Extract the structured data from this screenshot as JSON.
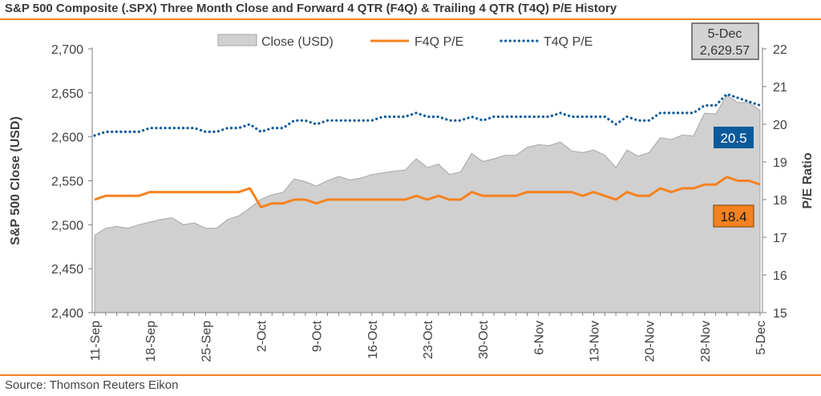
{
  "title": "S&P 500 Composite (.SPX) Three Month Close and Forward 4 QTR (F4Q) & Trailing 4 QTR (T4Q) P/E History",
  "source": "Source: Thomson Reuters Eikon",
  "colors": {
    "accent_rule": "#f57f1f",
    "close_fill": "#d0d0d0",
    "close_stroke": "#a6a6a6",
    "f4q": "#f58220",
    "t4q": "#0a5a9c",
    "axis": "#7f7f7f",
    "text": "#404040"
  },
  "chart_data": {
    "type": "area",
    "title": "S&P 500 Composite (.SPX) Three Month Close and Forward 4 QTR (F4Q) & Trailing 4 QTR (T4Q) P/E History",
    "ylabel": "S&P 500 Close (USD)",
    "y2label": "P/E Ratio",
    "ylim": [
      2400,
      2700
    ],
    "y2lim": [
      15,
      22
    ],
    "yticks": [
      "2,400",
      "2,450",
      "2,500",
      "2,550",
      "2,600",
      "2,650",
      "2,700"
    ],
    "y2ticks": [
      "15",
      "16",
      "17",
      "18",
      "19",
      "20",
      "21",
      "22"
    ],
    "xticks": [
      {
        "label": "11-Sep",
        "index": 0
      },
      {
        "label": "18-Sep",
        "index": 5
      },
      {
        "label": "25-Sep",
        "index": 10
      },
      {
        "label": "2-Oct",
        "index": 15
      },
      {
        "label": "9-Oct",
        "index": 20
      },
      {
        "label": "16-Oct",
        "index": 25
      },
      {
        "label": "23-Oct",
        "index": 30
      },
      {
        "label": "30-Oct",
        "index": 35
      },
      {
        "label": "6-Nov",
        "index": 40
      },
      {
        "label": "13-Nov",
        "index": 45
      },
      {
        "label": "20-Nov",
        "index": 50
      },
      {
        "label": "28-Nov",
        "index": 55
      },
      {
        "label": "5-Dec",
        "index": 60
      }
    ],
    "legend_position": "top",
    "grid": false,
    "series": [
      {
        "name": "Close (USD)",
        "axis": "left",
        "style": "area",
        "values": [
          2488,
          2496,
          2498,
          2496,
          2500,
          2503,
          2506,
          2508,
          2500,
          2502,
          2496,
          2496,
          2506,
          2510,
          2519,
          2529,
          2534,
          2537,
          2552,
          2549,
          2544,
          2550,
          2555,
          2551,
          2553,
          2557,
          2559,
          2561,
          2562,
          2575,
          2565,
          2569,
          2557,
          2560,
          2581,
          2572,
          2575,
          2579,
          2579,
          2588,
          2591,
          2590,
          2594,
          2584,
          2582,
          2585,
          2579,
          2565,
          2585,
          2578,
          2582,
          2599,
          2597,
          2602,
          2601,
          2627,
          2626,
          2647,
          2639,
          2639,
          2630
        ]
      },
      {
        "name": "F4Q P/E",
        "axis": "right",
        "style": "line",
        "values": [
          18.0,
          18.1,
          18.1,
          18.1,
          18.1,
          18.2,
          18.2,
          18.2,
          18.2,
          18.2,
          18.2,
          18.2,
          18.2,
          18.2,
          18.3,
          17.8,
          17.9,
          17.9,
          18.0,
          18.0,
          17.9,
          18.0,
          18.0,
          18.0,
          18.0,
          18.0,
          18.0,
          18.0,
          18.0,
          18.1,
          18.0,
          18.1,
          18.0,
          18.0,
          18.2,
          18.1,
          18.1,
          18.1,
          18.1,
          18.2,
          18.2,
          18.2,
          18.2,
          18.2,
          18.1,
          18.2,
          18.1,
          18.0,
          18.2,
          18.1,
          18.1,
          18.3,
          18.2,
          18.3,
          18.3,
          18.4,
          18.4,
          18.6,
          18.5,
          18.5,
          18.4
        ]
      },
      {
        "name": "T4Q P/E",
        "axis": "right",
        "style": "dotted",
        "values": [
          19.7,
          19.8,
          19.8,
          19.8,
          19.8,
          19.9,
          19.9,
          19.9,
          19.9,
          19.9,
          19.8,
          19.8,
          19.9,
          19.9,
          20.0,
          19.8,
          19.9,
          19.9,
          20.1,
          20.1,
          20.0,
          20.1,
          20.1,
          20.1,
          20.1,
          20.1,
          20.2,
          20.2,
          20.2,
          20.3,
          20.2,
          20.2,
          20.1,
          20.1,
          20.2,
          20.1,
          20.2,
          20.2,
          20.2,
          20.2,
          20.2,
          20.2,
          20.3,
          20.2,
          20.2,
          20.2,
          20.2,
          20.0,
          20.2,
          20.1,
          20.1,
          20.3,
          20.3,
          20.3,
          20.3,
          20.5,
          20.5,
          20.8,
          20.7,
          20.6,
          20.5
        ]
      }
    ],
    "annotations": [
      {
        "name": "last-close-callout",
        "date": "5-Dec",
        "value": "2,629.57"
      },
      {
        "name": "t4q-callout",
        "value": "20.5"
      },
      {
        "name": "f4q-callout",
        "value": "18.4"
      }
    ]
  }
}
